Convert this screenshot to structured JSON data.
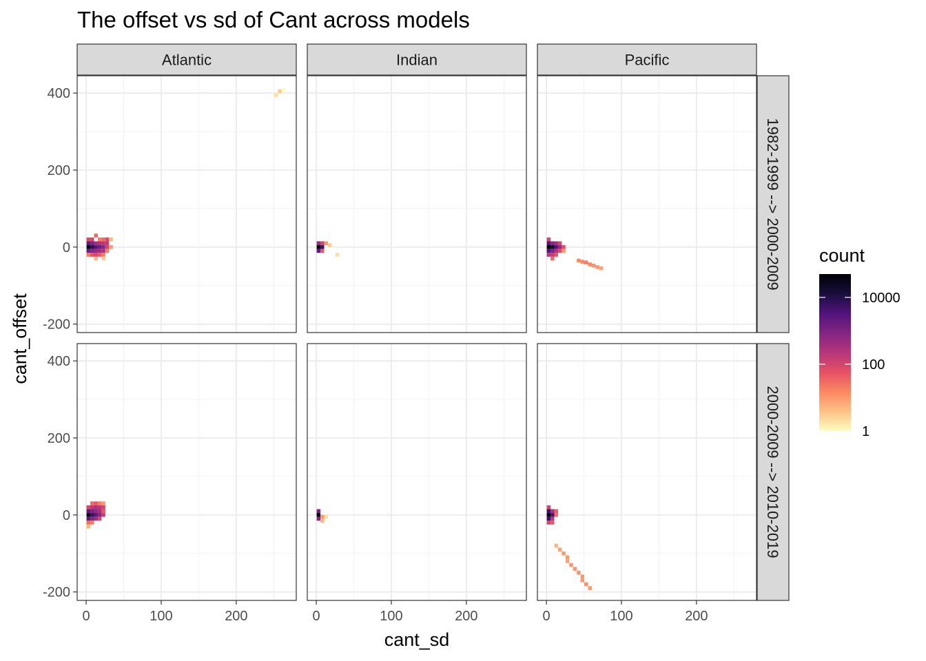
{
  "chart_data": {
    "type": "heatmap",
    "title": "The offset vs sd of Cant across models",
    "xlabel": "cant_sd",
    "ylabel": "cant_offset",
    "xlim": [
      -12,
      280
    ],
    "ylim": [
      -222,
      445
    ],
    "x_ticks": [
      0,
      100,
      200
    ],
    "y_ticks": [
      -200,
      0,
      200,
      400
    ],
    "x_tick_labels": [
      "0",
      "100",
      "200"
    ],
    "y_tick_labels": [
      "-200",
      "0",
      "200",
      "400"
    ],
    "grid": true,
    "bin_width_x": 5,
    "bin_height_y": 10,
    "columns": [
      "Atlantic",
      "Indian",
      "Pacific"
    ],
    "rows": [
      "1982-1999 --> 2000-2009",
      "2000-2009 --> 2010-2019"
    ],
    "legend": {
      "title": "count",
      "placement": "right",
      "scale": "log10",
      "breaks": [
        1,
        100,
        10000
      ],
      "break_labels": [
        "1",
        "100",
        "10000"
      ],
      "max": 50000,
      "colors": [
        "#FCFDBF",
        "#FEC287",
        "#FB8861",
        "#E65164",
        "#B63679",
        "#822681",
        "#51127C",
        "#180F3D",
        "#000004"
      ]
    },
    "panels": [
      {
        "col": "Atlantic",
        "row": "1982-1999 --> 2000-2009",
        "cells": [
          [
            3,
            0,
            30000
          ],
          [
            3,
            10,
            2000
          ],
          [
            3,
            -10,
            1500
          ],
          [
            3,
            20,
            80
          ],
          [
            3,
            -20,
            20
          ],
          [
            8,
            0,
            8000
          ],
          [
            8,
            10,
            1000
          ],
          [
            8,
            -10,
            800
          ],
          [
            8,
            20,
            100
          ],
          [
            8,
            -20,
            60
          ],
          [
            13,
            0,
            3000
          ],
          [
            13,
            10,
            400
          ],
          [
            13,
            -10,
            600
          ],
          [
            13,
            30,
            30
          ],
          [
            13,
            -20,
            100
          ],
          [
            13,
            -30,
            5
          ],
          [
            18,
            0,
            1500
          ],
          [
            18,
            10,
            300
          ],
          [
            18,
            -10,
            400
          ],
          [
            18,
            -20,
            50
          ],
          [
            18,
            20,
            20
          ],
          [
            23,
            0,
            800
          ],
          [
            23,
            10,
            200
          ],
          [
            23,
            -10,
            300
          ],
          [
            23,
            20,
            30
          ],
          [
            23,
            -20,
            20
          ],
          [
            23,
            -30,
            3
          ],
          [
            28,
            10,
            150
          ],
          [
            28,
            20,
            80
          ],
          [
            28,
            0,
            100
          ],
          [
            28,
            -10,
            20
          ],
          [
            33,
            0,
            10
          ],
          [
            33,
            20,
            5
          ],
          [
            253,
            395,
            2
          ],
          [
            258,
            405,
            3
          ],
          [
            263,
            408,
            1
          ]
        ]
      },
      {
        "col": "Indian",
        "row": "1982-1999 --> 2000-2009",
        "cells": [
          [
            3,
            0,
            45000
          ],
          [
            3,
            -10,
            2000
          ],
          [
            3,
            10,
            500
          ],
          [
            8,
            0,
            5000
          ],
          [
            8,
            10,
            100
          ],
          [
            8,
            -10,
            50
          ],
          [
            13,
            10,
            10
          ],
          [
            18,
            5,
            3
          ],
          [
            28,
            -20,
            2
          ]
        ]
      },
      {
        "col": "Pacific",
        "row": "1982-1999 --> 2000-2009",
        "cells": [
          [
            3,
            0,
            48000
          ],
          [
            3,
            10,
            3000
          ],
          [
            3,
            -10,
            3000
          ],
          [
            3,
            -20,
            200
          ],
          [
            3,
            20,
            100
          ],
          [
            8,
            0,
            15000
          ],
          [
            8,
            10,
            800
          ],
          [
            8,
            -10,
            1000
          ],
          [
            8,
            -20,
            150
          ],
          [
            8,
            -30,
            30
          ],
          [
            13,
            0,
            3000
          ],
          [
            13,
            10,
            400
          ],
          [
            13,
            -10,
            300
          ],
          [
            13,
            -20,
            60
          ],
          [
            18,
            0,
            500
          ],
          [
            18,
            10,
            100
          ],
          [
            18,
            -10,
            80
          ],
          [
            23,
            0,
            60
          ],
          [
            23,
            -10,
            10
          ],
          [
            43,
            -35,
            15
          ],
          [
            48,
            -38,
            15
          ],
          [
            53,
            -40,
            20
          ],
          [
            58,
            -45,
            15
          ],
          [
            63,
            -48,
            12
          ],
          [
            68,
            -52,
            10
          ],
          [
            73,
            -55,
            8
          ]
        ]
      },
      {
        "col": "Atlantic",
        "row": "2000-2009 --> 2010-2019",
        "cells": [
          [
            3,
            0,
            30000
          ],
          [
            3,
            10,
            2000
          ],
          [
            3,
            -10,
            2000
          ],
          [
            3,
            20,
            100
          ],
          [
            3,
            -20,
            30
          ],
          [
            3,
            -30,
            5
          ],
          [
            8,
            0,
            6000
          ],
          [
            8,
            10,
            1000
          ],
          [
            8,
            -10,
            800
          ],
          [
            8,
            20,
            200
          ],
          [
            8,
            30,
            30
          ],
          [
            8,
            -20,
            20
          ],
          [
            13,
            0,
            2500
          ],
          [
            13,
            10,
            600
          ],
          [
            13,
            -10,
            400
          ],
          [
            13,
            20,
            300
          ],
          [
            13,
            30,
            50
          ],
          [
            18,
            0,
            800
          ],
          [
            18,
            10,
            400
          ],
          [
            18,
            20,
            200
          ],
          [
            18,
            -10,
            100
          ],
          [
            18,
            30,
            20
          ],
          [
            23,
            0,
            150
          ],
          [
            23,
            10,
            50
          ],
          [
            23,
            20,
            100
          ],
          [
            23,
            30,
            10
          ]
        ]
      },
      {
        "col": "Indian",
        "row": "2000-2009 --> 2010-2019",
        "cells": [
          [
            3,
            0,
            45000
          ],
          [
            3,
            10,
            1000
          ],
          [
            3,
            -10,
            800
          ],
          [
            8,
            -5,
            10
          ],
          [
            8,
            -15,
            5
          ],
          [
            13,
            -5,
            2
          ]
        ]
      },
      {
        "col": "Pacific",
        "row": "2000-2009 --> 2010-2019",
        "cells": [
          [
            3,
            0,
            48000
          ],
          [
            3,
            10,
            5000
          ],
          [
            3,
            -10,
            5000
          ],
          [
            3,
            -20,
            100
          ],
          [
            3,
            20,
            100
          ],
          [
            8,
            0,
            4000
          ],
          [
            8,
            10,
            300
          ],
          [
            8,
            -10,
            200
          ],
          [
            8,
            -20,
            50
          ],
          [
            13,
            10,
            40
          ],
          [
            13,
            0,
            30
          ],
          [
            13,
            -80,
            5
          ],
          [
            18,
            -90,
            8
          ],
          [
            23,
            -100,
            10
          ],
          [
            28,
            -110,
            10
          ],
          [
            28,
            -120,
            8
          ],
          [
            33,
            -130,
            10
          ],
          [
            38,
            -140,
            10
          ],
          [
            43,
            -150,
            12
          ],
          [
            48,
            -160,
            10
          ],
          [
            48,
            -170,
            10
          ],
          [
            53,
            -180,
            12
          ],
          [
            58,
            -190,
            10
          ]
        ]
      }
    ]
  }
}
